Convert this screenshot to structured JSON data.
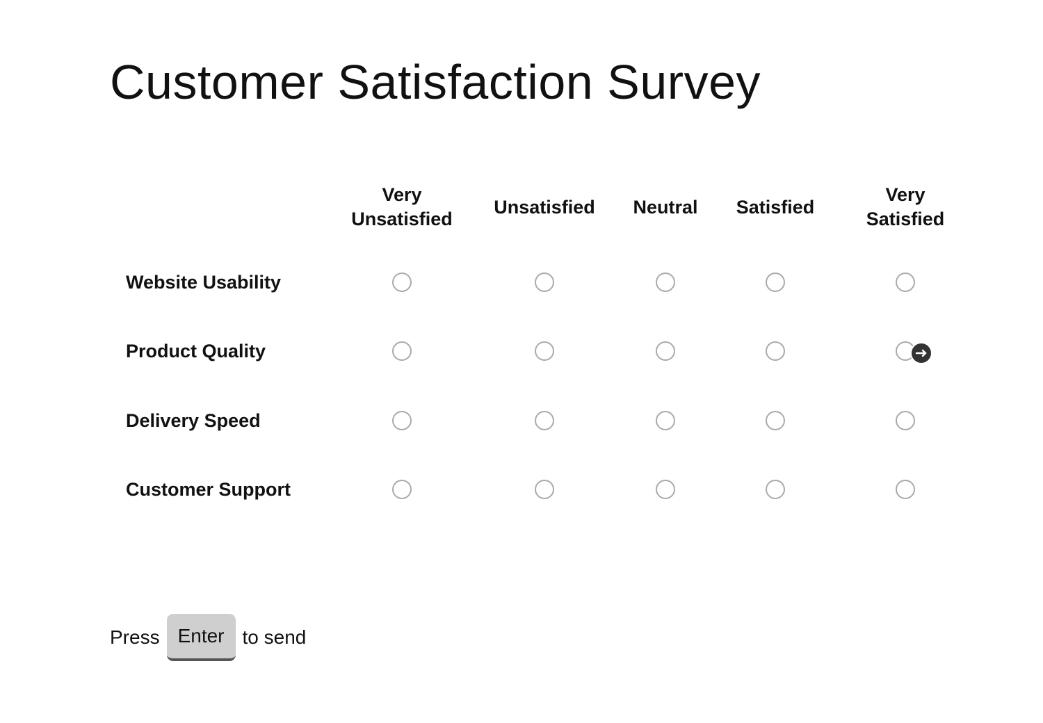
{
  "title": "Customer Satisfaction Survey",
  "columns": [
    "Very Unsatisfied",
    "Unsatisfied",
    "Neutral",
    "Satisfied",
    "Very Satisfied"
  ],
  "rows": [
    "Website Usability",
    "Product Quality",
    "Delivery Speed",
    "Customer Support"
  ],
  "footer": {
    "before": "Press",
    "key": "Enter",
    "after": "to send"
  }
}
